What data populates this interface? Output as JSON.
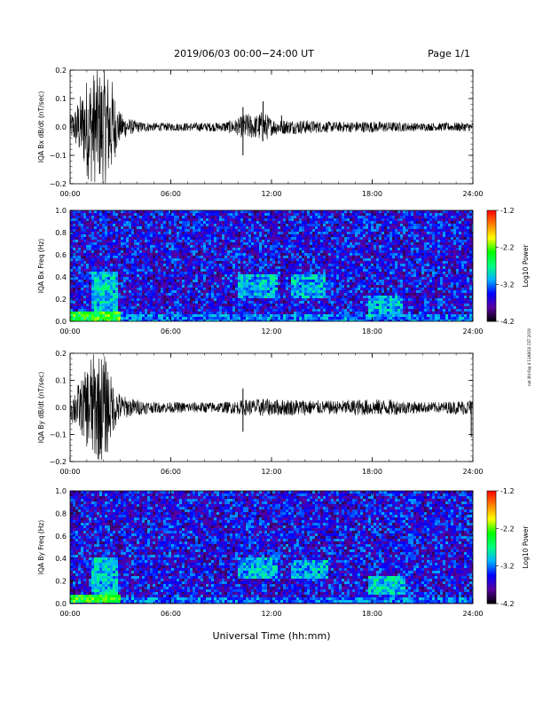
{
  "header": {
    "title": "2019/06/03  00:00−24:00 UT",
    "page": "Page 1/1"
  },
  "side_note": "nat ilfd 6sp 4 11A8/10 CST 2019",
  "xaxis": {
    "label": "Universal Time (hh:mm)",
    "ticks": [
      "00:00",
      "06:00",
      "12:00",
      "18:00",
      "24:00"
    ],
    "range_hours": [
      0,
      24
    ]
  },
  "colorbar": {
    "label": "Log10 Power",
    "ticks": [
      "-1.2",
      "-2.2",
      "-3.2",
      "-4.2"
    ],
    "range": [
      -4.2,
      -1.2
    ],
    "colormap": [
      "#000000",
      "#5a00a0",
      "#0000ff",
      "#00b4ff",
      "#00ff80",
      "#00ff00",
      "#ffff00",
      "#ff8000",
      "#ff0000"
    ]
  },
  "chart_data": [
    {
      "type": "line",
      "ylabel": "IQA Bx dB/dt (nT/sec)",
      "ylim": [
        -0.2,
        0.2
      ],
      "yticks": [
        "0.2",
        "0.1",
        "0.0",
        "−0.1",
        "−0.2"
      ],
      "line_color": "#000000",
      "envelope": {
        "x_hours": [
          0,
          0.25,
          0.5,
          0.75,
          1.0,
          1.25,
          1.5,
          1.75,
          2.0,
          2.25,
          2.5,
          2.75,
          3.0,
          3.5,
          4.0,
          5.0,
          6.0,
          7.0,
          8.0,
          9.0,
          10.0,
          10.5,
          11.0,
          11.5,
          12.0,
          13.0,
          14.0,
          15.0,
          16.0,
          17.0,
          18.0,
          19.0,
          20.0,
          21.0,
          22.0,
          23.0,
          24.0
        ],
        "amplitude": [
          0.04,
          0.06,
          0.1,
          0.13,
          0.18,
          0.2,
          0.2,
          0.2,
          0.2,
          0.2,
          0.17,
          0.09,
          0.05,
          0.03,
          0.02,
          0.015,
          0.014,
          0.015,
          0.016,
          0.016,
          0.03,
          0.05,
          0.04,
          0.06,
          0.03,
          0.025,
          0.025,
          0.02,
          0.018,
          0.02,
          0.02,
          0.018,
          0.016,
          0.014,
          0.014,
          0.016,
          0.016
        ]
      },
      "spikes": [
        {
          "x_hours": 10.3,
          "value": -0.1
        },
        {
          "x_hours": 10.3,
          "value": 0.07
        },
        {
          "x_hours": 11.5,
          "value": 0.09
        },
        {
          "x_hours": 12.6,
          "value": 0.04
        }
      ]
    },
    {
      "type": "heatmap",
      "ylabel": "IQA Bx Freq (Hz)",
      "ylim": [
        0,
        1.0
      ],
      "yticks": [
        "1.0",
        "0.8",
        "0.6",
        "0.4",
        "0.2",
        "0.0"
      ],
      "background_log_power": -3.55,
      "features": [
        {
          "x_hours": [
            0,
            3
          ],
          "freq_hz": [
            0,
            0.08
          ],
          "log_power": -2.4
        },
        {
          "x_hours": [
            1.2,
            2.8
          ],
          "freq_hz": [
            0,
            0.45
          ],
          "log_power": -3.0
        },
        {
          "x_hours": [
            10.0,
            12.3
          ],
          "freq_hz": [
            0.22,
            0.42
          ],
          "log_power": -3.05
        },
        {
          "x_hours": [
            13.2,
            15.3
          ],
          "freq_hz": [
            0.22,
            0.42
          ],
          "log_power": -3.05
        },
        {
          "x_hours": [
            17.8,
            19.8
          ],
          "freq_hz": [
            0.05,
            0.22
          ],
          "log_power": -3.05
        },
        {
          "x_hours": [
            0,
            24
          ],
          "freq_hz": [
            0,
            0.06
          ],
          "log_power": -3.25
        }
      ]
    },
    {
      "type": "line",
      "ylabel": "IQA By dB/dt (nT/sec)",
      "ylim": [
        -0.2,
        0.2
      ],
      "yticks": [
        "0.2",
        "0.1",
        "0.0",
        "−0.1",
        "−0.2"
      ],
      "line_color": "#000000",
      "envelope": {
        "x_hours": [
          0,
          0.25,
          0.5,
          0.75,
          1.0,
          1.25,
          1.5,
          1.75,
          2.0,
          2.25,
          2.5,
          2.75,
          3.0,
          3.5,
          4.0,
          5.0,
          6.0,
          7.0,
          8.0,
          9.0,
          10.0,
          10.5,
          11.0,
          11.5,
          12.0,
          13.0,
          14.0,
          15.0,
          16.0,
          17.0,
          18.0,
          19.0,
          20.0,
          21.0,
          22.0,
          23.0,
          24.0
        ],
        "amplitude": [
          0.05,
          0.07,
          0.09,
          0.11,
          0.15,
          0.2,
          0.2,
          0.2,
          0.2,
          0.17,
          0.1,
          0.07,
          0.05,
          0.035,
          0.03,
          0.02,
          0.02,
          0.02,
          0.02,
          0.02,
          0.025,
          0.03,
          0.03,
          0.035,
          0.03,
          0.03,
          0.03,
          0.025,
          0.025,
          0.03,
          0.03,
          0.03,
          0.025,
          0.02,
          0.02,
          0.025,
          0.03
        ]
      },
      "spikes": [
        {
          "x_hours": 10.3,
          "value": -0.09
        },
        {
          "x_hours": 10.3,
          "value": 0.07
        },
        {
          "x_hours": 23.9,
          "value": -0.11
        }
      ]
    },
    {
      "type": "heatmap",
      "ylabel": "IQA By Freq (Hz)",
      "ylim": [
        0,
        1.0
      ],
      "yticks": [
        "1.0",
        "0.8",
        "0.6",
        "0.4",
        "0.2",
        "0.0"
      ],
      "background_log_power": -3.55,
      "features": [
        {
          "x_hours": [
            0,
            3
          ],
          "freq_hz": [
            0,
            0.08
          ],
          "log_power": -2.4
        },
        {
          "x_hours": [
            1.2,
            2.8
          ],
          "freq_hz": [
            0,
            0.4
          ],
          "log_power": -3.0
        },
        {
          "x_hours": [
            10.0,
            12.3
          ],
          "freq_hz": [
            0.22,
            0.42
          ],
          "log_power": -3.05
        },
        {
          "x_hours": [
            13.2,
            15.4
          ],
          "freq_hz": [
            0.22,
            0.38
          ],
          "log_power": -3.05
        },
        {
          "x_hours": [
            17.8,
            20.0
          ],
          "freq_hz": [
            0.07,
            0.25
          ],
          "log_power": -2.95
        },
        {
          "x_hours": [
            0,
            24
          ],
          "freq_hz": [
            0,
            0.06
          ],
          "log_power": -3.25
        }
      ]
    }
  ]
}
